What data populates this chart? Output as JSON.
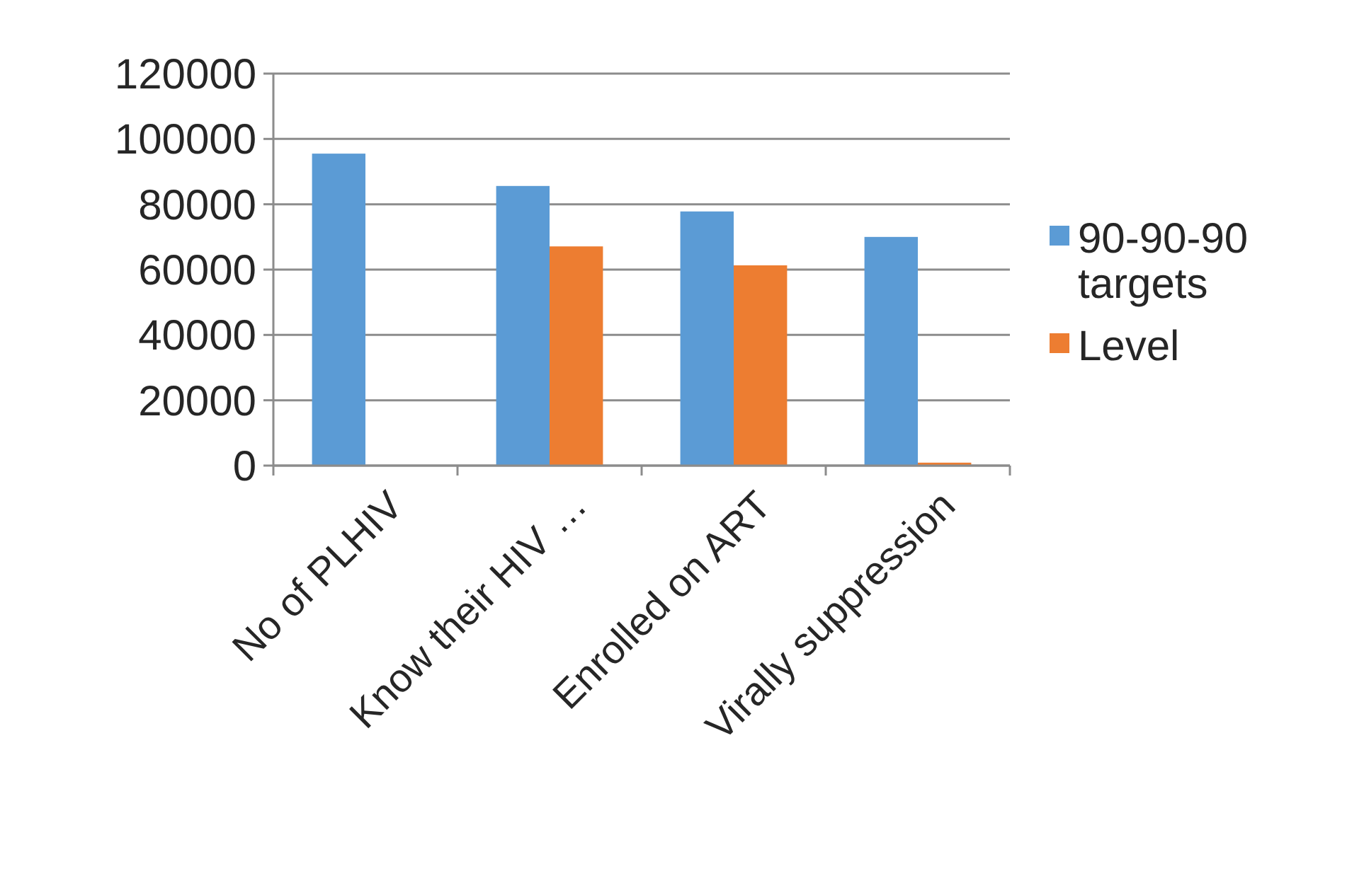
{
  "chart_data": {
    "type": "bar",
    "categories": [
      "No of PLHIV",
      "Know their HIV …",
      "Enrolled on ART",
      "Virally suppression"
    ],
    "series": [
      {
        "name": "90-90-90 targets",
        "color": "#5b9bd5",
        "values": [
          95500,
          85600,
          77800,
          70000
        ]
      },
      {
        "name": "Level",
        "color": "#ed7d31",
        "values": [
          null,
          67100,
          61300,
          900
        ]
      }
    ],
    "ylim": [
      0,
      120000
    ],
    "yticks": [
      0,
      20000,
      40000,
      60000,
      80000,
      100000,
      120000
    ],
    "grid": "y",
    "legend": "right"
  }
}
